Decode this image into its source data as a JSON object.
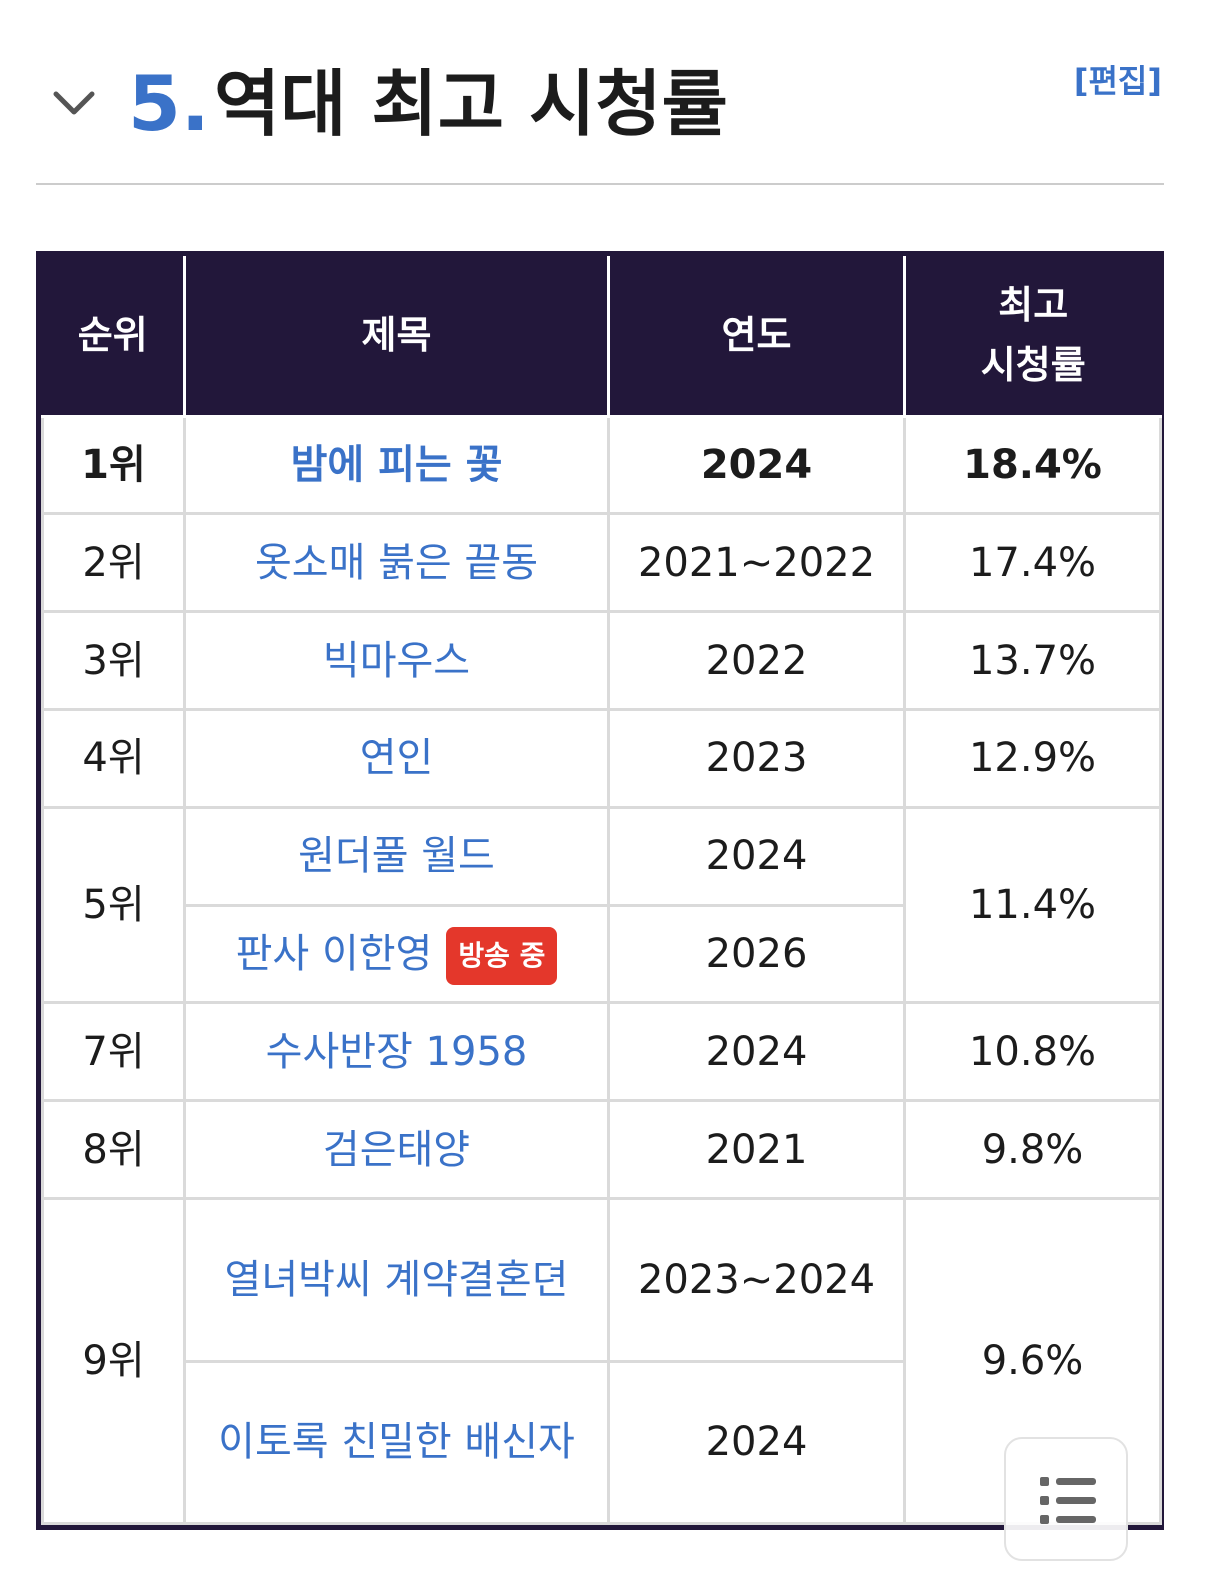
{
  "section": {
    "number": "5.",
    "title": "역대 최고 시청률",
    "edit_label": "[편집]"
  },
  "table": {
    "headers": {
      "rank": "순위",
      "title": "제목",
      "year": "연도",
      "rating_line1": "최고",
      "rating_line2": "시청률"
    },
    "rows": [
      {
        "rank": "1위",
        "title": "밤에 피는 꽃",
        "year": "2024",
        "rating": "18.4%"
      },
      {
        "rank": "2위",
        "title": "옷소매 붉은 끝동",
        "year": "2021~2022",
        "rating": "17.4%"
      },
      {
        "rank": "3위",
        "title": "빅마우스",
        "year": "2022",
        "rating": "13.7%"
      },
      {
        "rank": "4위",
        "title": "연인",
        "year": "2023",
        "rating": "12.9%"
      },
      {
        "rank": "5위",
        "title": "원더풀 월드",
        "year": "2024",
        "rating": "11.4%"
      },
      {
        "title": "판사 이한영",
        "badge": "방송 중",
        "year": "2026"
      },
      {
        "rank": "7위",
        "title": "수사반장 1958",
        "year": "2024",
        "rating": "10.8%"
      },
      {
        "rank": "8위",
        "title": "검은태양",
        "year": "2021",
        "rating": "9.8%"
      },
      {
        "rank": "9위",
        "title": "열녀박씨 계약결혼뎐",
        "year": "2023~2024",
        "rating": "9.6%"
      },
      {
        "title": "이토록 친밀한 배신자",
        "year": "2024"
      }
    ]
  },
  "icons": {
    "collapse": "chevron-down-icon",
    "toc": "list-icon"
  },
  "colors": {
    "link": "#3a72c8",
    "header_bg": "#22173a",
    "badge_bg": "#e4372b"
  }
}
